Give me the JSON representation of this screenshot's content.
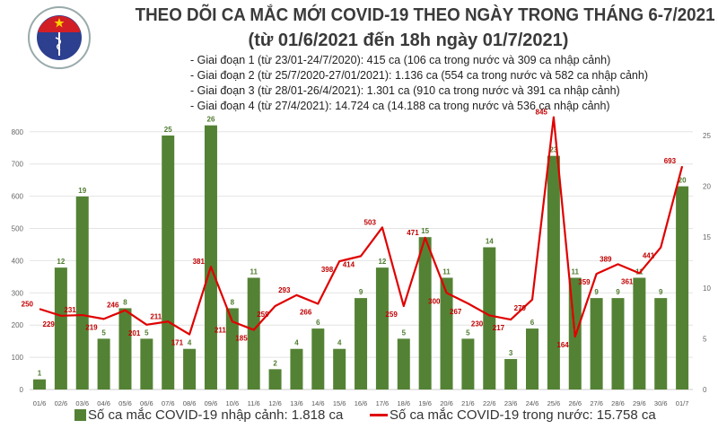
{
  "header": {
    "logo_text": "BỘ Y TẾ MINISTRY OF HEALTH",
    "title_line1": "THEO DÕI CA MẮC MỚI COVID-19 THEO NGÀY TRONG THÁNG 6-7/2021",
    "title_line2": "(từ 01/6/2021 đến 18h ngày 01/7/2021)",
    "phases": [
      "- Giai đoạn 1 (từ 23/01-24/7/2020): 415 ca (106 ca trong nước và 309 ca nhập cảnh)",
      "- Giai đoạn 2 (từ 25/7/2020-27/01/2021): 1.136 ca (554 ca trong nước và 582 ca nhập cảnh)",
      "- Giai đoạn 3 (từ 28/01-26/4/2021): 1.301 ca (910 ca trong nước và 391 ca nhập cảnh)",
      "- Giai đoạn 4 (từ 27/4/2021): 14.724 ca (14.188 ca trong nước và 536 ca nhập cảnh)"
    ]
  },
  "chart_data": {
    "type": "bar+line",
    "categories": [
      "01/6",
      "02/6",
      "03/6",
      "04/6",
      "05/6",
      "06/6",
      "07/6",
      "08/6",
      "09/6",
      "10/6",
      "11/6",
      "12/6",
      "13/6",
      "14/6",
      "15/6",
      "16/6",
      "17/6",
      "18/6",
      "19/6",
      "20/6",
      "21/6",
      "22/6",
      "23/6",
      "24/6",
      "25/6",
      "26/6",
      "27/6",
      "28/6",
      "29/6",
      "30/6",
      "01/7"
    ],
    "series": [
      {
        "name": "Số ca mắc COVID-19 nhập cảnh: 1.818 ca",
        "type": "bar",
        "axis": "right",
        "color": "#548235",
        "values": [
          1,
          12,
          19,
          5,
          8,
          5,
          25,
          4,
          26,
          8,
          11,
          2,
          4,
          6,
          4,
          9,
          12,
          5,
          15,
          11,
          5,
          14,
          3,
          6,
          23,
          11,
          9,
          9,
          11,
          9,
          20
        ]
      },
      {
        "name": "Số ca mắc COVID-19 trong nước: 15.758 ca",
        "type": "line",
        "axis": "left",
        "color": "#e00000",
        "values": [
          250,
          229,
          231,
          219,
          246,
          201,
          211,
          171,
          381,
          211,
          185,
          259,
          293,
          266,
          398,
          414,
          503,
          259,
          471,
          300,
          267,
          230,
          217,
          279,
          845,
          164,
          359,
          389,
          361,
          441,
          693
        ]
      }
    ],
    "y_left": {
      "ylim": [
        0,
        800
      ],
      "ticks": [
        0,
        100,
        200,
        300,
        400,
        500,
        600,
        700,
        800
      ]
    },
    "y_right": {
      "ylim": [
        0,
        25
      ],
      "ticks": [
        0,
        5,
        10,
        15,
        20,
        25
      ]
    },
    "grid": true,
    "legend": "bottom"
  }
}
